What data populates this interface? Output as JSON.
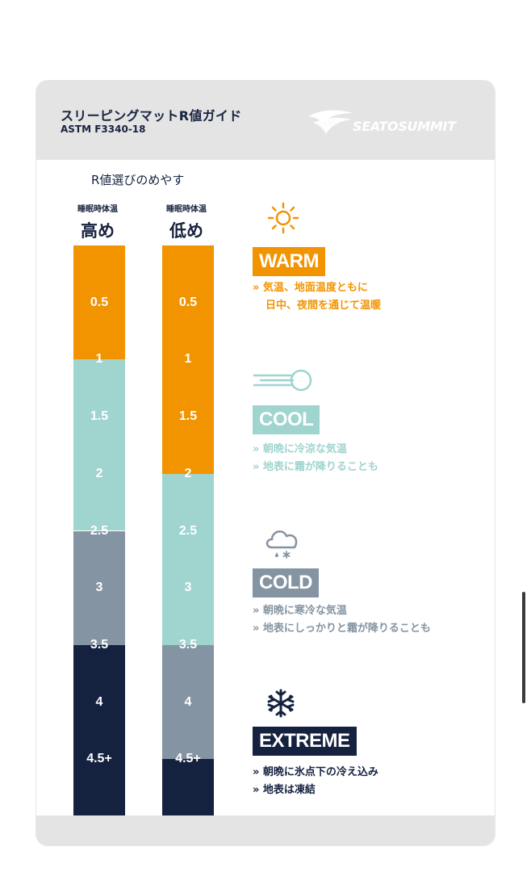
{
  "header": {
    "title": "スリーピングマットR値ガイド",
    "subtitle": "ASTM F3340-18",
    "brand": "SEATOSUMMIT"
  },
  "guide_label": "R値選びのめやす",
  "columns": [
    {
      "sub": "睡眠時体温",
      "head": "高め"
    },
    {
      "sub": "睡眠時体温",
      "head": "低め"
    }
  ],
  "colors": {
    "warm": "#f29400",
    "cool": "#9fd4cf",
    "cold": "#8494a2",
    "extreme": "#14213f"
  },
  "chart_data": {
    "type": "bar",
    "series": [
      {
        "name": "高め",
        "ticks": [
          "0.5",
          "1",
          "1.5",
          "2",
          "2.5",
          "3",
          "3.5",
          "4",
          "4.5+"
        ],
        "bands": [
          {
            "category": "warm",
            "from": 0,
            "to": 1
          },
          {
            "category": "cool",
            "from": 1,
            "to": 2.5
          },
          {
            "category": "cold",
            "from": 2.5,
            "to": 3.5
          },
          {
            "category": "extreme",
            "from": 3.5,
            "to": 5
          }
        ]
      },
      {
        "name": "低め",
        "ticks": [
          "0.5",
          "1",
          "1.5",
          "2",
          "2.5",
          "3",
          "3.5",
          "4",
          "4.5+"
        ],
        "bands": [
          {
            "category": "warm",
            "from": 0,
            "to": 2
          },
          {
            "category": "cool",
            "from": 2,
            "to": 3.5
          },
          {
            "category": "cold",
            "from": 3.5,
            "to": 4.5
          },
          {
            "category": "extreme",
            "from": 4.5,
            "to": 5
          }
        ]
      }
    ]
  },
  "categories": {
    "warm": {
      "label": "WARM",
      "icon": "sun-icon",
      "lines": [
        "» 気温、地面温度ともに",
        "日中、夜間を通じて温暖"
      ]
    },
    "cool": {
      "label": "COOL",
      "icon": "wind-icon",
      "lines": [
        "» 朝晩に冷涼な気温",
        "» 地表に霜が降りることも"
      ]
    },
    "cold": {
      "label": "COLD",
      "icon": "cloud-snow-icon",
      "lines": [
        "» 朝晩に寒冷な気温",
        "» 地表にしっかりと霜が降りることも"
      ]
    },
    "extreme": {
      "label": "EXTREME",
      "icon": "snowflake-icon",
      "lines": [
        "» 朝晩に氷点下の冷え込み",
        "» 地表は凍結"
      ]
    }
  }
}
